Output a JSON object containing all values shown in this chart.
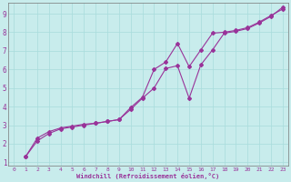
{
  "xlabel": "Windchill (Refroidissement éolien,°C)",
  "background_color": "#c8ecec",
  "line_color": "#993399",
  "xlim": [
    -0.5,
    23.5
  ],
  "ylim": [
    0.8,
    9.6
  ],
  "xticks": [
    0,
    1,
    2,
    3,
    4,
    5,
    6,
    7,
    8,
    9,
    10,
    11,
    12,
    13,
    14,
    15,
    16,
    17,
    18,
    19,
    20,
    21,
    22,
    23
  ],
  "yticks": [
    1,
    2,
    3,
    4,
    5,
    6,
    7,
    8,
    9
  ],
  "grid_color": "#a8dcdc",
  "series1_x": [
    1,
    2,
    3,
    4,
    5,
    6,
    7,
    8,
    9,
    10,
    11,
    12,
    13,
    14,
    15,
    16,
    17,
    18,
    19,
    20,
    21,
    22,
    23
  ],
  "series1_y": [
    1.3,
    2.3,
    2.65,
    2.85,
    2.95,
    3.05,
    3.1,
    3.2,
    3.3,
    3.85,
    4.45,
    5.0,
    6.05,
    6.2,
    4.45,
    6.25,
    7.05,
    7.95,
    8.05,
    8.2,
    8.5,
    8.85,
    9.35
  ],
  "series2_x": [
    1,
    2,
    3,
    4,
    5,
    6,
    7,
    8,
    9,
    10,
    11,
    12,
    13,
    14,
    15,
    16,
    17,
    18,
    19,
    20,
    21,
    22,
    23
  ],
  "series2_y": [
    1.3,
    2.15,
    2.55,
    2.8,
    2.9,
    3.0,
    3.1,
    3.2,
    3.3,
    3.95,
    4.5,
    6.0,
    6.4,
    7.4,
    6.15,
    7.05,
    7.95,
    8.0,
    8.1,
    8.25,
    8.55,
    8.9,
    9.25
  ]
}
